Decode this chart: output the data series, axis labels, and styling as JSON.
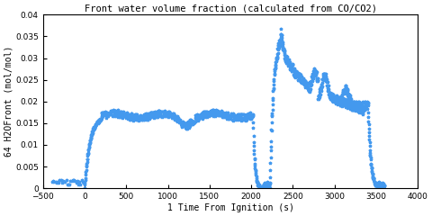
{
  "title": "Front water volume fraction (calculated from CO/CO2)",
  "xlabel": "1 Time From Ignition (s)",
  "ylabel": "64 H2OFront (mol/mol)",
  "xlim": [
    -500,
    4000
  ],
  "ylim": [
    0,
    0.04
  ],
  "xticks": [
    -500,
    0,
    500,
    1000,
    1500,
    2000,
    2500,
    3000,
    3500,
    4000
  ],
  "yticks": [
    0,
    0.005,
    0.01,
    0.015,
    0.02,
    0.025,
    0.03,
    0.035,
    0.04
  ],
  "color": "#4499EE",
  "marker": "*",
  "markersize": 2.5,
  "bg_color": "#ffffff"
}
